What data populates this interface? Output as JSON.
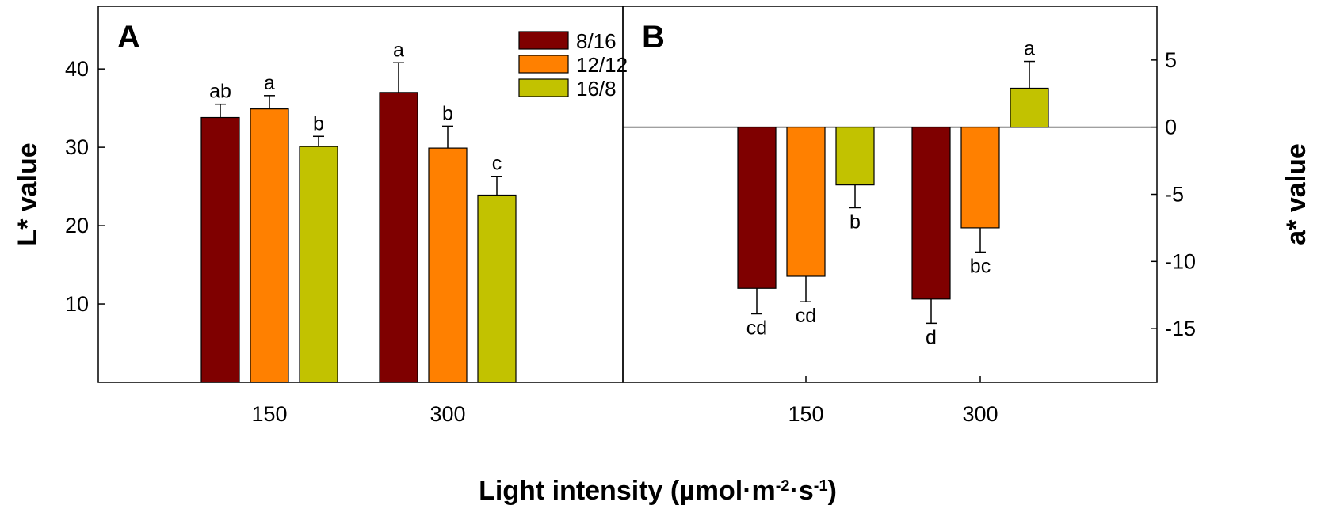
{
  "chart_data": [
    {
      "type": "bar",
      "panel_label": "A",
      "categories": [
        "150",
        "300"
      ],
      "series": [
        {
          "name": "8/16",
          "color": "#7F0000",
          "values": [
            33.8,
            37.0
          ],
          "errors": [
            1.7,
            3.8
          ],
          "letters": [
            "ab",
            "a"
          ]
        },
        {
          "name": "12/12",
          "color": "#FF8000",
          "values": [
            34.9,
            29.9
          ],
          "errors": [
            1.7,
            2.8
          ],
          "letters": [
            "a",
            "b"
          ]
        },
        {
          "name": "16/8",
          "color": "#C2C200",
          "values": [
            30.1,
            23.9
          ],
          "errors": [
            1.3,
            2.4
          ],
          "letters": [
            "b",
            "c"
          ]
        }
      ],
      "ylabel": "L* value",
      "ylim": [
        0,
        48
      ],
      "yticks": [
        10,
        20,
        30,
        40
      ],
      "legend": "top-right"
    },
    {
      "type": "bar",
      "panel_label": "B",
      "categories": [
        "150",
        "300"
      ],
      "series": [
        {
          "name": "8/16",
          "color": "#7F0000",
          "values": [
            -12.0,
            -12.8
          ],
          "errors": [
            1.9,
            1.8
          ],
          "letters": [
            "cd",
            "d"
          ]
        },
        {
          "name": "12/12",
          "color": "#FF8000",
          "values": [
            -11.1,
            -7.5
          ],
          "errors": [
            1.9,
            1.8
          ],
          "letters": [
            "cd",
            "bc"
          ]
        },
        {
          "name": "16/8",
          "color": "#C2C200",
          "values": [
            -4.3,
            2.9
          ],
          "errors": [
            1.7,
            2.0
          ],
          "letters": [
            "b",
            "a"
          ]
        }
      ],
      "ylabel": "a* value",
      "ylim": [
        -19,
        9
      ],
      "yticks": [
        5,
        0,
        -5,
        -10,
        -15
      ],
      "axis_side": "right"
    }
  ],
  "shared": {
    "xlabel_main": "Light intensity (µmol·m",
    "xlabel_sup1": "-2",
    "xlabel_mid": "·s",
    "xlabel_sup2": "-1",
    "xlabel_end": ")"
  }
}
